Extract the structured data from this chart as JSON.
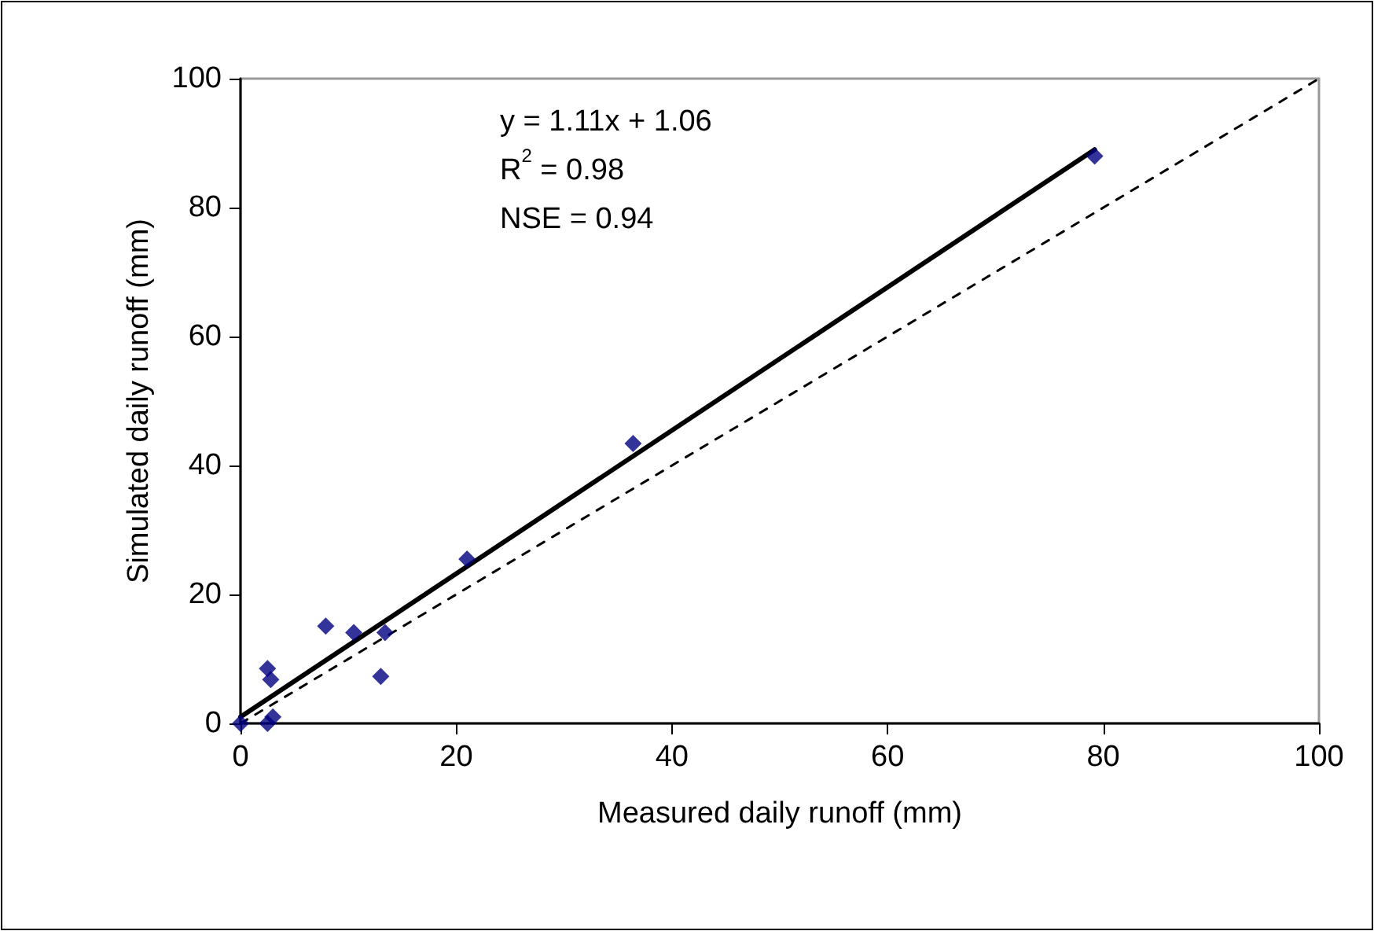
{
  "chart_data": {
    "type": "scatter",
    "xlabel": "Measured daily runoff (mm)",
    "ylabel": "Simulated daily runoff (mm)",
    "xlim": [
      0,
      100
    ],
    "ylim": [
      0,
      100
    ],
    "xticks": [
      0,
      20,
      40,
      60,
      80,
      100
    ],
    "yticks": [
      0,
      20,
      40,
      60,
      80,
      100
    ],
    "grid": false,
    "annotations": [
      {
        "text": "y = 1.11x + 1.06"
      },
      {
        "text": "R$^{2}$ = 0.98"
      },
      {
        "text": "NSE = 0.94"
      }
    ],
    "series": [
      {
        "color": "#000080",
        "marker": "diamond",
        "x": [
          0,
          2.5,
          3,
          2.5,
          2.8,
          7.9,
          10.5,
          13.4,
          13,
          21,
          36.4,
          79.2
        ],
        "values": [
          0,
          0,
          1,
          8.5,
          6.8,
          15.1,
          14.1,
          14.1,
          7.3,
          25.5,
          43.4,
          88
        ]
      },
      {
        "type": "line",
        "color": "#000000",
        "marker": "none",
        "line_style": "solid",
        "x": [
          0,
          79.2
        ],
        "values": [
          1,
          89
        ]
      },
      {
        "type": "line",
        "color": "#000000",
        "marker": "none",
        "line_style": "dotted",
        "x": [
          0,
          100
        ],
        "values": [
          0,
          100
        ]
      }
    ]
  }
}
